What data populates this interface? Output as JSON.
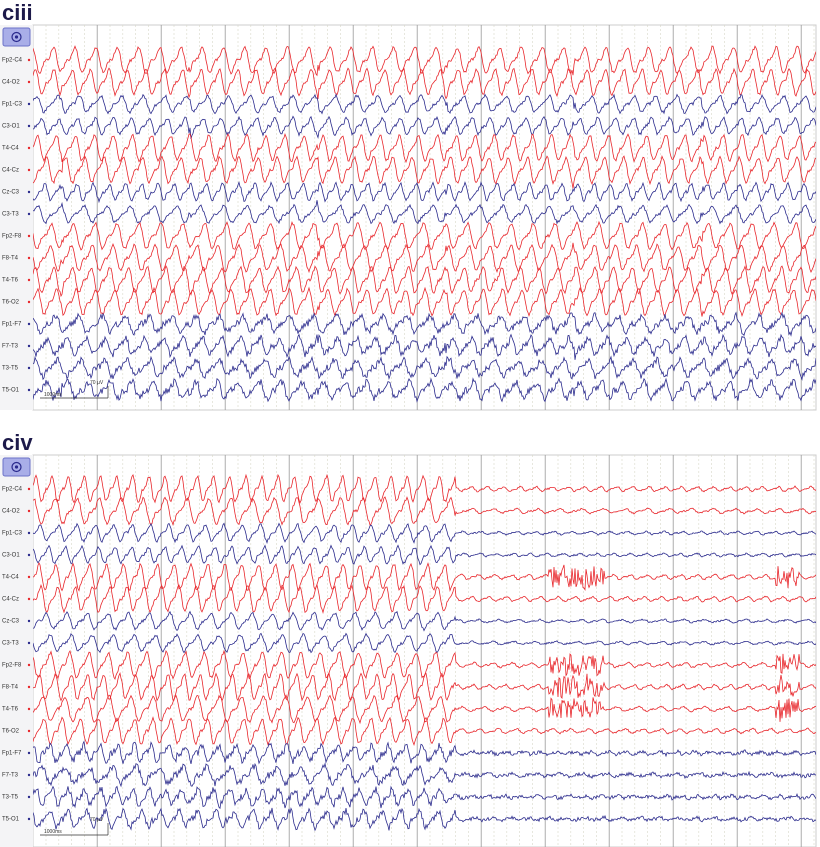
{
  "channels": [
    {
      "name": "Fp2-C4",
      "color": "#e8262b"
    },
    {
      "name": "C4-O2",
      "color": "#e8262b"
    },
    {
      "name": "Fp1-C3",
      "color": "#2a2a8c"
    },
    {
      "name": "C3-O1",
      "color": "#2a2a8c"
    },
    {
      "name": "T4-C4",
      "color": "#e8262b"
    },
    {
      "name": "C4-Cz",
      "color": "#e8262b"
    },
    {
      "name": "Cz-C3",
      "color": "#2a2a8c"
    },
    {
      "name": "C3-T3",
      "color": "#2a2a8c"
    },
    {
      "name": "Fp2-F8",
      "color": "#e8262b"
    },
    {
      "name": "F8-T4",
      "color": "#e8262b"
    },
    {
      "name": "T4-T6",
      "color": "#e8262b"
    },
    {
      "name": "T6-O2",
      "color": "#e8262b"
    },
    {
      "name": "Fp1-F7",
      "color": "#2a2a8c"
    },
    {
      "name": "F7-T3",
      "color": "#2a2a8c"
    },
    {
      "name": "T3-T5",
      "color": "#2a2a8c"
    },
    {
      "name": "T5-O1",
      "color": "#2a2a8c"
    }
  ],
  "panels": [
    {
      "label": "ciii",
      "scale": {
        "amplitude": "70 µV",
        "time": "1000ms"
      }
    },
    {
      "label": "civ",
      "scale": {
        "amplitude": "70 µV",
        "time": "1000ms"
      }
    }
  ]
}
